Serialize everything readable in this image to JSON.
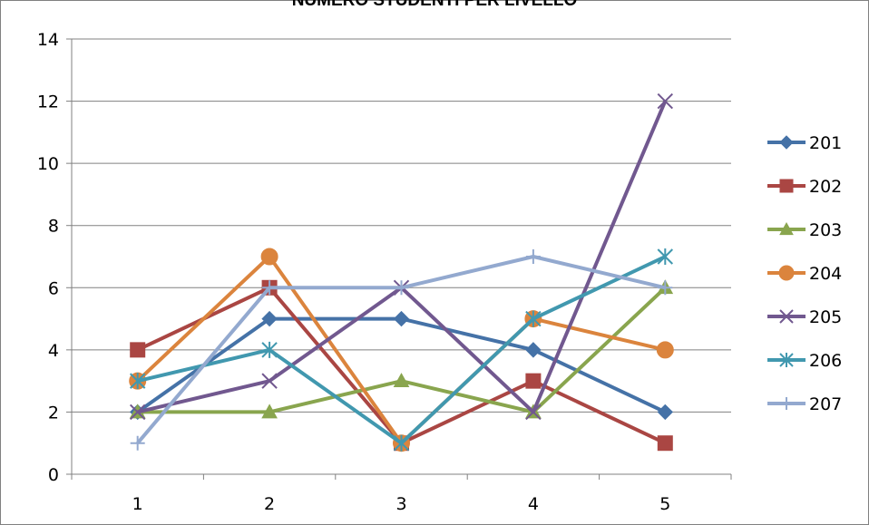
{
  "chart_data": {
    "type": "line",
    "title": "NUMERO STUDENTI PER LIVELLO",
    "x": [
      1,
      2,
      3,
      4,
      5
    ],
    "x_tick_labels": [
      "1",
      "2",
      "3",
      "4",
      "5"
    ],
    "ylim": [
      0,
      14
    ],
    "y_ticks": [
      0,
      2,
      4,
      6,
      8,
      10,
      12,
      14
    ],
    "y_tick_labels": [
      "0",
      "2",
      "4",
      "6",
      "8",
      "10",
      "12",
      "14"
    ],
    "grid": "horizontal",
    "legend_position": "right",
    "series": [
      {
        "name": "201",
        "values": [
          2,
          5,
          5,
          4,
          2
        ],
        "color": "#4572A7",
        "marker": "diamond"
      },
      {
        "name": "202",
        "values": [
          4,
          6,
          1,
          3,
          1
        ],
        "color": "#AA4643",
        "marker": "square"
      },
      {
        "name": "203",
        "values": [
          2,
          2,
          3,
          2,
          6
        ],
        "color": "#89A54E",
        "marker": "triangle"
      },
      {
        "name": "204",
        "values": [
          3,
          7,
          1,
          5,
          4
        ],
        "color": "#DB843D",
        "marker": "circle"
      },
      {
        "name": "205",
        "values": [
          2,
          3,
          6,
          2,
          12
        ],
        "color": "#71588F",
        "marker": "x"
      },
      {
        "name": "206",
        "values": [
          3,
          4,
          1,
          5,
          7
        ],
        "color": "#4198AF",
        "marker": "star"
      },
      {
        "name": "207",
        "values": [
          1,
          6,
          6,
          7,
          6
        ],
        "color": "#93A9CF",
        "marker": "plus"
      }
    ]
  }
}
